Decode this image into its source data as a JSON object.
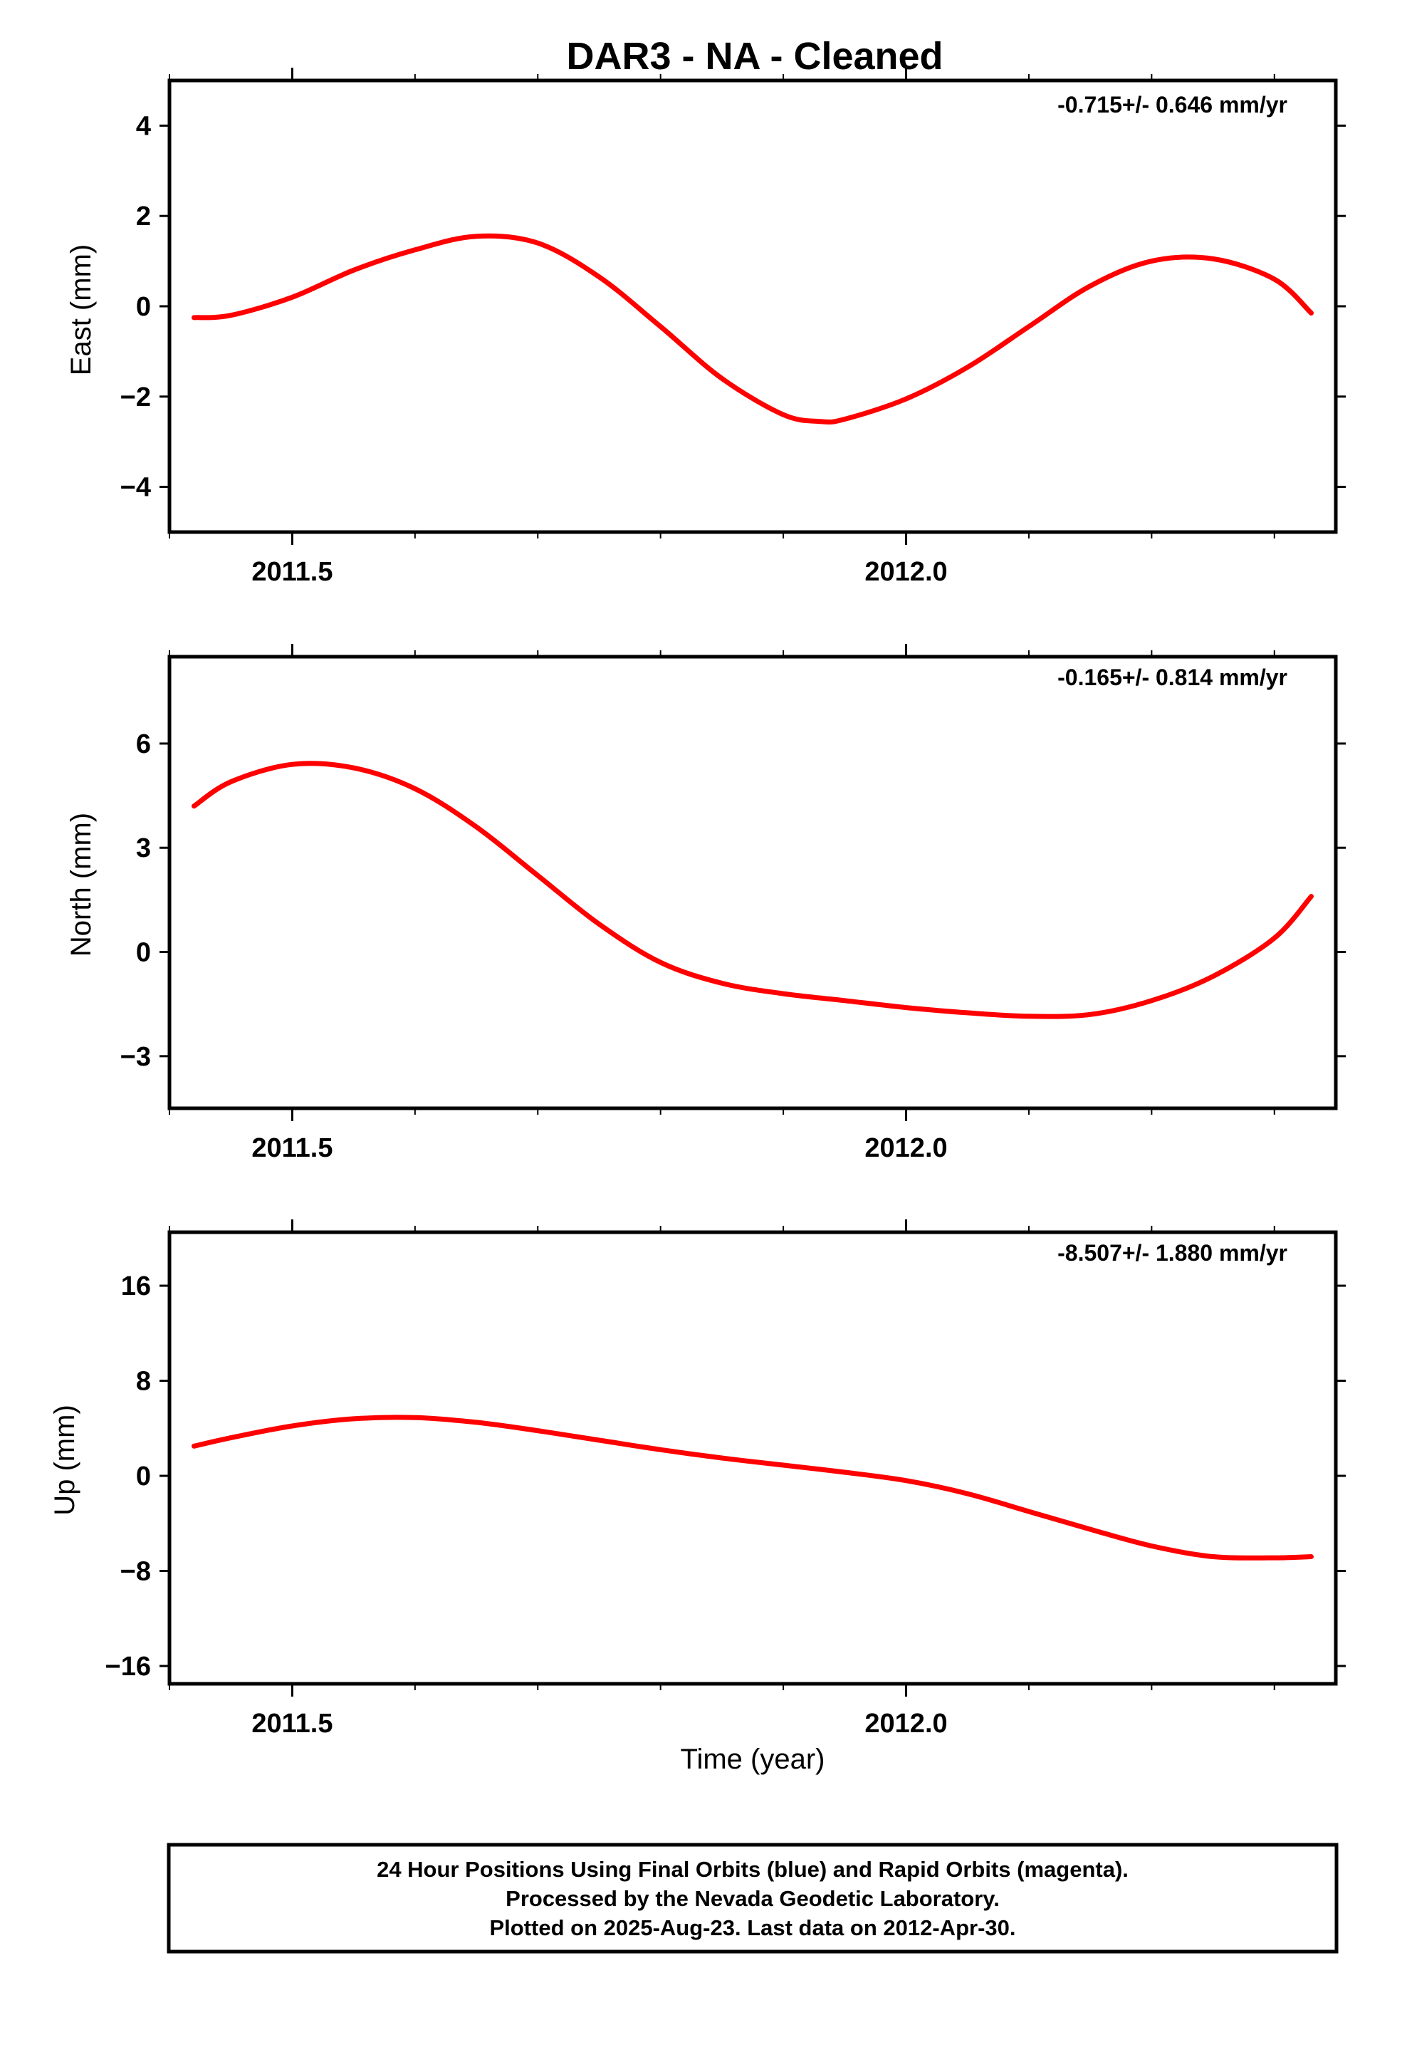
{
  "title": "DAR3  - NA - Cleaned",
  "xlabel": "Time (year)",
  "footer": [
    "24 Hour Positions Using Final Orbits (blue) and Rapid Orbits (magenta).",
    "Processed by the Nevada Geodetic Laboratory.",
    "Plotted on 2025-Aug-23. Last data on 2012-Apr-30."
  ],
  "colors": {
    "points": "#0000ff",
    "fit": "#ff0000",
    "frame": "#000000"
  },
  "chart_data": [
    {
      "type": "scatter",
      "ylabel": "East (mm)",
      "rate_label": "-0.715+/- 0.646 mm/yr",
      "xlim": [
        2011.4,
        2012.35
      ],
      "ylim": [
        -5.0,
        5.0
      ],
      "yticks": [
        -4,
        -2,
        0,
        2,
        4
      ],
      "yticklabels": [
        "−4",
        "−2",
        "0",
        "2",
        "4"
      ],
      "xticks": [
        2011.5,
        2012.0
      ],
      "xticklabels": [
        "2011.5",
        "2012.0"
      ],
      "fit": {
        "x": [
          2011.42,
          2011.45,
          2011.5,
          2011.55,
          2011.6,
          2011.65,
          2011.7,
          2011.75,
          2011.8,
          2011.85,
          2011.9,
          2011.93,
          2011.95,
          2012.0,
          2012.05,
          2012.1,
          2012.15,
          2012.2,
          2012.25,
          2012.3,
          2012.33
        ],
        "y": [
          -0.25,
          -0.2,
          0.2,
          0.8,
          1.25,
          1.55,
          1.4,
          0.65,
          -0.45,
          -1.6,
          -2.4,
          -2.55,
          -2.5,
          -2.05,
          -1.35,
          -0.45,
          0.45,
          1.0,
          1.05,
          0.6,
          -0.15
        ]
      }
    },
    {
      "type": "scatter",
      "ylabel": "North (mm)",
      "rate_label": "-0.165+/- 0.814 mm/yr",
      "xlim": [
        2011.4,
        2012.35
      ],
      "ylim": [
        -4.5,
        8.5
      ],
      "yticks": [
        -3,
        0,
        3,
        6
      ],
      "yticklabels": [
        "−3",
        "0",
        "3",
        "6"
      ],
      "xticks": [
        2011.5,
        2012.0
      ],
      "xticklabels": [
        "2011.5",
        "2012.0"
      ],
      "fit": {
        "x": [
          2011.42,
          2011.45,
          2011.5,
          2011.55,
          2011.6,
          2011.65,
          2011.7,
          2011.75,
          2011.8,
          2011.85,
          2011.9,
          2011.95,
          2012.0,
          2012.05,
          2012.1,
          2012.15,
          2012.2,
          2012.25,
          2012.3,
          2012.33
        ],
        "y": [
          4.2,
          4.9,
          5.4,
          5.3,
          4.7,
          3.6,
          2.2,
          0.8,
          -0.3,
          -0.9,
          -1.2,
          -1.4,
          -1.6,
          -1.75,
          -1.85,
          -1.8,
          -1.4,
          -0.7,
          0.4,
          1.6
        ]
      }
    },
    {
      "type": "scatter",
      "ylabel": "Up (mm)",
      "rate_label": "-8.507+/- 1.880 mm/yr",
      "xlim": [
        2011.4,
        2012.35
      ],
      "ylim": [
        -17.5,
        20.5
      ],
      "yticks": [
        -16,
        -8,
        0,
        8,
        16
      ],
      "yticklabels": [
        "−16",
        "−8",
        "0",
        "8",
        "16"
      ],
      "xticks": [
        2011.5,
        2012.0
      ],
      "xticklabels": [
        "2011.5",
        "2012.0"
      ],
      "fit": {
        "x": [
          2011.42,
          2011.45,
          2011.5,
          2011.55,
          2011.6,
          2011.65,
          2011.7,
          2011.75,
          2011.8,
          2011.85,
          2011.9,
          2011.95,
          2012.0,
          2012.05,
          2012.1,
          2012.15,
          2012.2,
          2012.25,
          2012.3,
          2012.33
        ],
        "y": [
          2.5,
          3.2,
          4.2,
          4.8,
          4.9,
          4.5,
          3.8,
          3.0,
          2.2,
          1.5,
          0.9,
          0.3,
          -0.4,
          -1.5,
          -3.0,
          -4.5,
          -5.9,
          -6.8,
          -6.9,
          -6.8
        ]
      }
    }
  ]
}
